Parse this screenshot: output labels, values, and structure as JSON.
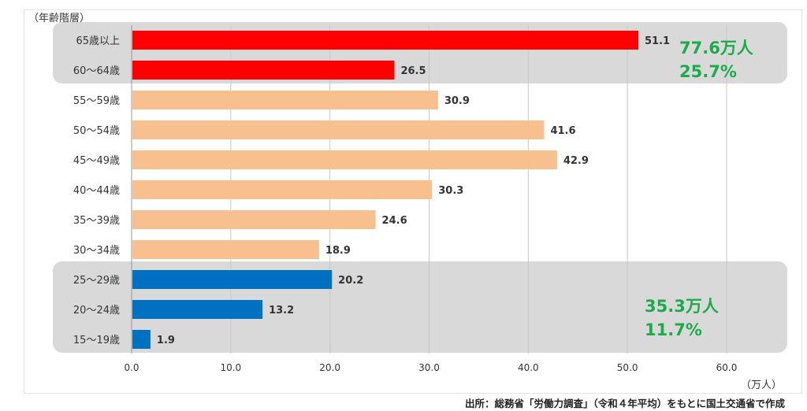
{
  "chart_data": {
    "type": "bar",
    "orientation": "horizontal",
    "ylabel": "（年齢階層）",
    "xlabel": "（万人）",
    "xlim": [
      0,
      60
    ],
    "xticks": [
      "0.0",
      "10.0",
      "20.0",
      "30.0",
      "40.0",
      "50.0",
      "60.0"
    ],
    "grid": true,
    "categories": [
      "65歳以上",
      "60～64歳",
      "55～59歳",
      "50～54歳",
      "45～49歳",
      "40～44歳",
      "35～39歳",
      "30～34歳",
      "25～29歳",
      "20～24歳",
      "15～19歳"
    ],
    "values": [
      51.1,
      26.5,
      30.9,
      41.6,
      42.9,
      30.3,
      24.6,
      18.9,
      20.2,
      13.2,
      1.9
    ],
    "value_labels": [
      "51.1",
      "26.5",
      "30.9",
      "41.6",
      "42.9",
      "30.3",
      "24.6",
      "18.9",
      "20.2",
      "13.2",
      "1.9"
    ],
    "colors": [
      "#ff0000",
      "#ff0000",
      "#f8c08e",
      "#f8c08e",
      "#f8c08e",
      "#f8c08e",
      "#f8c08e",
      "#f8c08e",
      "#0070c0",
      "#0070c0",
      "#0070c0"
    ],
    "groups": [
      {
        "rows": [
          0,
          1
        ],
        "line1": "77.6万人",
        "line2": "25.7%",
        "fill": "#d9d9d9",
        "text_color": "#1daa4a"
      },
      {
        "rows": [
          8,
          9,
          10
        ],
        "line1": "35.3万人",
        "line2": "11.7%",
        "fill": "#d9d9d9",
        "text_color": "#1daa4a"
      }
    ]
  },
  "source": "出所：総務省「労働力調査」（令和４年平均）をもとに国土交通省で作成"
}
